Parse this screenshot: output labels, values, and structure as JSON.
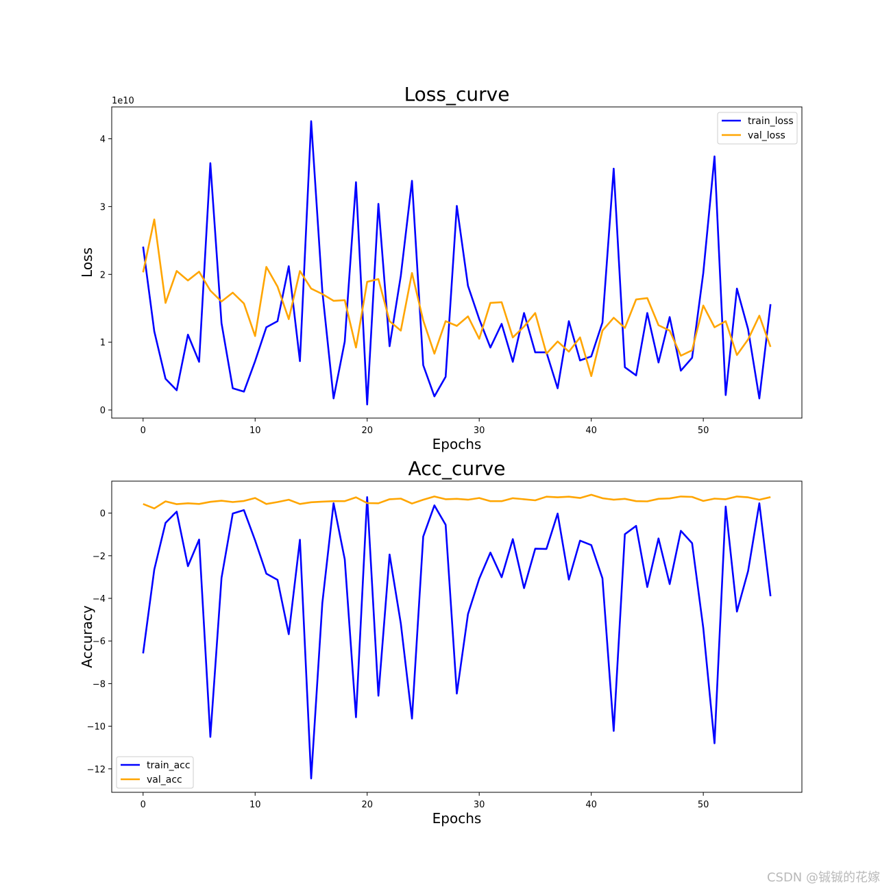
{
  "chart_data": [
    {
      "type": "line",
      "title": "Loss_curve",
      "xlabel": "Epochs",
      "ylabel": "Loss",
      "y_scale_label": "1e10",
      "xlim": [
        -2.8,
        58.8
      ],
      "ylim": [
        -0.12,
        4.47
      ],
      "xticks": [
        "0",
        "10",
        "20",
        "30",
        "40",
        "50"
      ],
      "yticks": [
        "0",
        "1",
        "2",
        "3",
        "4"
      ],
      "legend_position": "top-right",
      "grid": false,
      "x": [
        0,
        1,
        2,
        3,
        4,
        5,
        6,
        7,
        8,
        9,
        10,
        11,
        12,
        13,
        14,
        15,
        16,
        17,
        18,
        19,
        20,
        21,
        22,
        23,
        24,
        25,
        26,
        27,
        28,
        29,
        30,
        31,
        32,
        33,
        34,
        35,
        36,
        37,
        38,
        39,
        40,
        41,
        42,
        43,
        44,
        45,
        46,
        47,
        48,
        49,
        50,
        51,
        52,
        53,
        54,
        55,
        56
      ],
      "series": [
        {
          "name": "train_loss",
          "color": "#0000ff",
          "values": [
            2.41,
            1.16,
            0.46,
            0.29,
            1.11,
            0.71,
            3.64,
            1.28,
            0.32,
            0.27,
            0.72,
            1.22,
            1.31,
            2.12,
            0.72,
            4.26,
            1.75,
            0.17,
            1.01,
            3.36,
            0.08,
            3.04,
            0.94,
            1.98,
            3.38,
            0.66,
            0.2,
            0.49,
            3.01,
            1.83,
            1.34,
            0.92,
            1.27,
            0.71,
            1.43,
            0.85,
            0.85,
            0.32,
            1.31,
            0.73,
            0.79,
            1.29,
            3.56,
            0.63,
            0.51,
            1.43,
            0.7,
            1.37,
            0.58,
            0.77,
            2.02,
            3.74,
            0.22,
            1.79,
            1.19,
            0.17,
            1.56
          ]
        },
        {
          "name": "val_loss",
          "color": "#ffa500",
          "values": [
            2.03,
            2.81,
            1.58,
            2.05,
            1.91,
            2.04,
            1.76,
            1.6,
            1.73,
            1.57,
            1.09,
            2.11,
            1.82,
            1.34,
            2.05,
            1.79,
            1.71,
            1.61,
            1.62,
            0.92,
            1.89,
            1.93,
            1.31,
            1.17,
            2.02,
            1.32,
            0.83,
            1.31,
            1.24,
            1.38,
            1.05,
            1.58,
            1.59,
            1.07,
            1.23,
            1.43,
            0.83,
            1.01,
            0.86,
            1.07,
            0.5,
            1.17,
            1.36,
            1.21,
            1.63,
            1.65,
            1.25,
            1.17,
            0.8,
            0.88,
            1.54,
            1.22,
            1.31,
            0.81,
            1.04,
            1.39,
            0.93
          ]
        }
      ]
    },
    {
      "type": "line",
      "title": "Acc_curve",
      "xlabel": "Epochs",
      "ylabel": "Accuracy",
      "xlim": [
        -2.8,
        58.8
      ],
      "ylim": [
        -13.1,
        1.5
      ],
      "xticks": [
        "0",
        "10",
        "20",
        "30",
        "40",
        "50"
      ],
      "yticks": [
        "0",
        "−2",
        "−4",
        "−6",
        "−8",
        "−10",
        "−12"
      ],
      "legend_position": "bottom-left",
      "grid": false,
      "x": [
        0,
        1,
        2,
        3,
        4,
        5,
        6,
        7,
        8,
        9,
        10,
        11,
        12,
        13,
        14,
        15,
        16,
        17,
        18,
        19,
        20,
        21,
        22,
        23,
        24,
        25,
        26,
        27,
        28,
        29,
        30,
        31,
        32,
        33,
        34,
        35,
        36,
        37,
        38,
        39,
        40,
        41,
        42,
        43,
        44,
        45,
        46,
        47,
        48,
        49,
        50,
        51,
        52,
        53,
        54,
        55,
        56
      ],
      "series": [
        {
          "name": "train_acc",
          "color": "#0000ff",
          "values": [
            -6.58,
            -2.65,
            -0.46,
            0.07,
            -2.49,
            -1.24,
            -10.5,
            -3.04,
            -0.02,
            0.14,
            -1.28,
            -2.84,
            -3.13,
            -5.68,
            -1.25,
            -12.45,
            -4.22,
            0.46,
            -2.17,
            -9.58,
            0.75,
            -8.57,
            -1.94,
            -5.18,
            -9.64,
            -1.1,
            0.36,
            -0.55,
            -8.47,
            -4.74,
            -3.08,
            -1.85,
            -3.01,
            -1.22,
            -3.52,
            -1.67,
            -1.68,
            -0.02,
            -3.12,
            -1.29,
            -1.5,
            -3.06,
            -10.22,
            -0.99,
            -0.6,
            -3.47,
            -1.19,
            -3.33,
            -0.83,
            -1.41,
            -5.39,
            -10.8,
            0.31,
            -4.62,
            -2.72,
            0.46,
            -3.9
          ]
        },
        {
          "name": "val_acc",
          "color": "#ffa500",
          "values": [
            0.43,
            0.22,
            0.55,
            0.42,
            0.46,
            0.43,
            0.53,
            0.58,
            0.52,
            0.57,
            0.71,
            0.43,
            0.52,
            0.63,
            0.43,
            0.51,
            0.54,
            0.56,
            0.56,
            0.74,
            0.47,
            0.46,
            0.65,
            0.68,
            0.45,
            0.63,
            0.78,
            0.65,
            0.67,
            0.63,
            0.71,
            0.56,
            0.56,
            0.7,
            0.65,
            0.6,
            0.77,
            0.74,
            0.77,
            0.71,
            0.86,
            0.7,
            0.63,
            0.67,
            0.56,
            0.55,
            0.67,
            0.69,
            0.78,
            0.76,
            0.57,
            0.68,
            0.65,
            0.78,
            0.74,
            0.63,
            0.75
          ]
        }
      ]
    }
  ],
  "watermark": "CSDN @铖铖的花嫁"
}
